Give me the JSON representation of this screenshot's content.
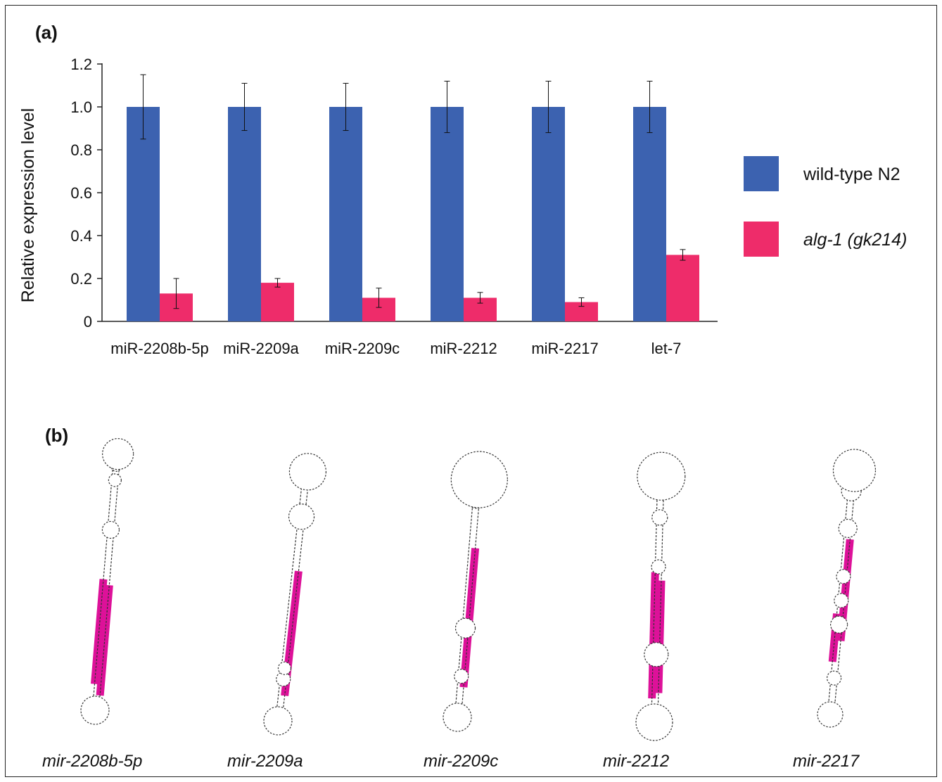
{
  "panel_a_label": "(a)",
  "panel_b_label": "(b)",
  "colors": {
    "wild_type": "#3c62b0",
    "mutant": "#ee2c6a",
    "highlight": "#dd1199",
    "structure_line": "#333333"
  },
  "chart_data": {
    "type": "bar",
    "ylabel": "Relative expression level",
    "xlabel": "",
    "ylim": [
      0,
      1.2
    ],
    "yticks": [
      "0",
      "0.2",
      "0.4",
      "0.6",
      "0.8",
      "1.0",
      "1.2"
    ],
    "grid": false,
    "legend_position": "right",
    "categories": [
      "miR-2208b-5p",
      "miR-2209a",
      "miR-2209c",
      "miR-2212",
      "miR-2217",
      "let-7"
    ],
    "series": [
      {
        "name": "wild-type N2",
        "color": "#3c62b0",
        "values": [
          1.0,
          1.0,
          1.0,
          1.0,
          1.0,
          1.0
        ],
        "errors": [
          0.15,
          0.11,
          0.11,
          0.12,
          0.12,
          0.12
        ]
      },
      {
        "name": "alg-1 (gk214)",
        "color": "#ee2c6a",
        "italic": true,
        "values": [
          0.13,
          0.18,
          0.11,
          0.11,
          0.09,
          0.31
        ],
        "errors": [
          0.07,
          0.02,
          0.045,
          0.025,
          0.02,
          0.025
        ]
      }
    ]
  },
  "structures": [
    {
      "label": "mir-2208b-5p"
    },
    {
      "label": "mir-2209a"
    },
    {
      "label": "mir-2209c"
    },
    {
      "label": "mir-2212"
    },
    {
      "label": "mir-2217"
    }
  ]
}
